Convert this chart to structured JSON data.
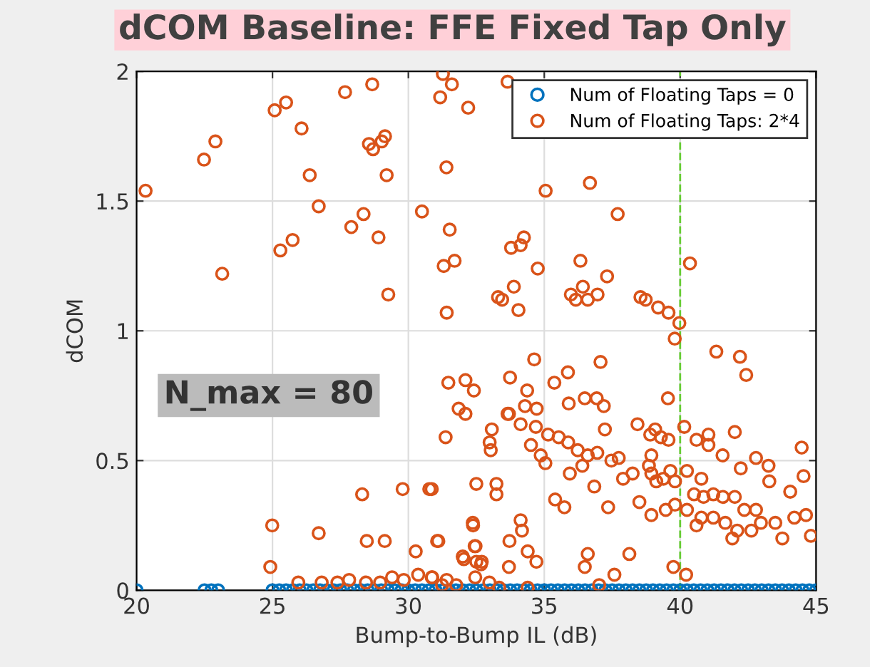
{
  "chart_data": {
    "type": "scatter",
    "title": "dCOM Baseline: FFE Fixed Tap Only",
    "xlabel": "Bump-to-Bump IL (dB)",
    "ylabel": "dCOM",
    "annotations": [
      "N_max = 80"
    ],
    "xlim": [
      20,
      45
    ],
    "ylim": [
      0,
      2
    ],
    "xticks": [
      20,
      25,
      30,
      35,
      40,
      45
    ],
    "yticks": [
      0,
      0.5,
      1,
      1.5,
      2
    ],
    "grid": true,
    "legend": "top right",
    "marker": "circle",
    "ref_lines": [
      {
        "axis": "x",
        "value": 40,
        "color": "#66cc33",
        "line_style": "dashed"
      }
    ],
    "series": [
      {
        "name": "Num of Floating Taps = 0",
        "color": "#0072bd",
        "x": [
          20,
          22.5,
          22.75,
          23,
          25,
          25.25,
          25.5,
          25.75,
          26,
          26.25,
          26.5,
          26.75,
          27,
          27.25,
          27.5,
          27.75,
          28,
          28.25,
          28.5,
          28.75,
          29,
          29.25,
          29.5,
          29.75,
          30,
          30.25,
          30.5,
          30.75,
          31,
          31.25,
          31.5,
          31.75,
          32,
          32.25,
          32.5,
          32.75,
          33,
          33.25,
          33.5,
          33.75,
          34,
          34.25,
          34.5,
          34.75,
          35,
          35.25,
          35.5,
          35.75,
          36,
          36.25,
          36.5,
          36.75,
          37,
          37.25,
          37.5,
          37.75,
          38,
          38.25,
          38.5,
          38.75,
          39,
          39.25,
          39.5,
          39.75,
          40,
          40.25,
          40.5,
          40.75,
          41,
          41.25,
          41.5,
          41.75,
          42,
          42.25,
          42.5,
          42.75,
          43,
          43.25,
          43.5,
          43.75,
          44,
          44.25,
          44.5,
          44.75,
          45
        ],
        "values": [
          0,
          0,
          0,
          0,
          0,
          0,
          0,
          0,
          0,
          0,
          0,
          0,
          0,
          0,
          0,
          0,
          0,
          0,
          0,
          0,
          0,
          0,
          0,
          0,
          0,
          0,
          0,
          0,
          0,
          0,
          0,
          0,
          0,
          0,
          0,
          0,
          0,
          0,
          0,
          0,
          0,
          0,
          0,
          0,
          0,
          0,
          0,
          0,
          0,
          0,
          0,
          0,
          0,
          0,
          0,
          0,
          0,
          0,
          0,
          0,
          0,
          0,
          0,
          0,
          0,
          0,
          0,
          0,
          0,
          0,
          0,
          0,
          0,
          0,
          0,
          0,
          0,
          0,
          0,
          0,
          0,
          0,
          0,
          0,
          0
        ]
      },
      {
        "name": "Num of Floating Taps: 2*4",
        "color": "#d95319",
        "x": [
          20.33,
          22.48,
          22.9,
          23.15,
          25.08,
          25.5,
          26.07,
          26.37,
          26.7,
          25.29,
          25.74,
          27.67,
          28.67,
          28.55,
          28.7,
          29.02,
          29.14,
          29.2,
          28.35,
          27.9,
          28.9,
          29.26,
          30.5,
          31.27,
          31.6,
          31.17,
          31.52,
          31.3,
          31.7,
          31.41,
          33.3,
          32.2,
          33.65,
          31.4,
          35.05,
          36.68,
          37.7,
          33.78,
          34.13,
          34.25,
          34.76,
          36.33,
          33.88,
          33.45,
          34.05,
          37.31,
          35.98,
          36.16,
          36.42,
          36.6,
          36.96,
          38.54,
          38.73,
          39.19,
          39.57,
          39.97,
          40.36,
          39.8,
          41.33,
          42.2,
          42.43,
          34.63,
          37.07,
          35.87,
          35.37,
          33.74,
          34.37,
          31.47,
          32.1,
          32.41,
          31.85,
          32.1,
          31.37,
          39.55,
          35.9,
          36.49,
          36.93,
          37.19,
          34.72,
          34.29,
          33.7,
          40.15,
          41.04,
          42.01,
          44.47,
          44.54,
          43.25,
          42.79,
          42.23,
          43.28,
          44.05,
          41.56,
          40.6,
          41.04,
          37.23,
          33.07,
          32.99,
          33.03,
          33.65,
          34.13,
          34.69,
          35.14,
          35.53,
          35.88,
          36.23,
          36.6,
          36.95,
          37.47,
          37.74,
          34.87,
          35.04,
          35.94,
          34.51,
          36.4,
          36.84,
          37.9,
          38.25,
          38.9,
          39.08,
          39.29,
          38.94,
          38.85,
          39.57,
          38.43,
          38.94,
          39.12,
          39.38,
          39.64,
          39.81,
          38.5,
          38.94,
          39.47,
          39.81,
          40.25,
          40.78,
          40.51,
          40.86,
          41.22,
          41.57,
          42.01,
          40.25,
          40.78,
          41.22,
          41.66,
          42.1,
          42.62,
          42.97,
          43.5,
          43.76,
          44.2,
          44.63,
          44.81,
          40.6,
          41.92,
          42.79,
          42.36,
          30.86,
          32.5,
          33.24,
          33.24,
          35.4,
          35.74,
          37.35,
          32.38,
          34.13,
          34.18,
          31.1,
          32.47,
          32.04,
          32.7,
          33.72,
          34.39,
          34.71,
          33.7,
          36.6,
          36.49,
          38.13,
          37.58,
          37.02,
          39.75,
          40.22,
          34.39,
          30.86,
          31.24,
          31.76,
          33.34,
          28.3,
          29.79,
          30.77,
          24.99,
          26.7,
          24.92,
          28.47,
          29.13,
          30.27,
          31.06,
          32.37,
          32.44,
          32.0,
          32.5,
          32.67,
          25.95,
          26.81,
          27.39,
          27.82,
          28.44,
          28.96,
          29.4,
          29.83,
          30.36,
          30.88,
          31.41,
          32.46,
          32.98
        ],
        "values": [
          1.54,
          1.66,
          1.73,
          1.22,
          1.85,
          1.88,
          1.78,
          1.6,
          1.48,
          1.31,
          1.35,
          1.92,
          1.95,
          1.72,
          1.7,
          1.73,
          1.75,
          1.6,
          1.45,
          1.4,
          1.36,
          1.14,
          1.46,
          1.99,
          1.95,
          1.9,
          1.39,
          1.25,
          1.27,
          1.07,
          1.13,
          1.86,
          1.96,
          1.63,
          1.54,
          1.57,
          1.45,
          1.32,
          1.33,
          1.36,
          1.24,
          1.27,
          1.17,
          1.12,
          1.08,
          1.21,
          1.14,
          1.12,
          1.17,
          1.12,
          1.14,
          1.13,
          1.12,
          1.09,
          1.07,
          1.03,
          1.26,
          0.97,
          0.92,
          0.9,
          0.83,
          0.89,
          0.88,
          0.84,
          0.8,
          0.82,
          0.77,
          0.8,
          0.81,
          0.77,
          0.7,
          0.68,
          0.59,
          0.74,
          0.72,
          0.74,
          0.74,
          0.71,
          0.7,
          0.71,
          0.68,
          0.63,
          0.6,
          0.61,
          0.55,
          0.44,
          0.48,
          0.51,
          0.47,
          0.42,
          0.38,
          0.52,
          0.58,
          0.56,
          0.62,
          0.62,
          0.57,
          0.54,
          0.68,
          0.64,
          0.63,
          0.6,
          0.59,
          0.57,
          0.54,
          0.52,
          0.53,
          0.5,
          0.51,
          0.52,
          0.49,
          0.45,
          0.56,
          0.48,
          0.4,
          0.43,
          0.45,
          0.6,
          0.62,
          0.59,
          0.52,
          0.48,
          0.58,
          0.64,
          0.45,
          0.42,
          0.43,
          0.46,
          0.42,
          0.34,
          0.29,
          0.31,
          0.33,
          0.46,
          0.43,
          0.37,
          0.36,
          0.37,
          0.36,
          0.36,
          0.31,
          0.28,
          0.28,
          0.26,
          0.23,
          0.23,
          0.26,
          0.26,
          0.2,
          0.28,
          0.29,
          0.21,
          0.25,
          0.2,
          0.31,
          0.31,
          0.39,
          0.41,
          0.41,
          0.37,
          0.35,
          0.32,
          0.32,
          0.25,
          0.27,
          0.23,
          0.19,
          0.17,
          0.12,
          0.11,
          0.19,
          0.15,
          0.11,
          0.09,
          0.14,
          0.09,
          0.14,
          0.06,
          0.02,
          0.09,
          0.06,
          0.01,
          0.05,
          0.02,
          0.02,
          0.01,
          0.37,
          0.39,
          0.39,
          0.25,
          0.22,
          0.09,
          0.19,
          0.19,
          0.15,
          0.19,
          0.26,
          0.17,
          0.13,
          0.11,
          0.1,
          0.03,
          0.03,
          0.03,
          0.04,
          0.03,
          0.03,
          0.05,
          0.04,
          0.06,
          0.05,
          0.04,
          0.05,
          0.03
        ]
      }
    ]
  }
}
